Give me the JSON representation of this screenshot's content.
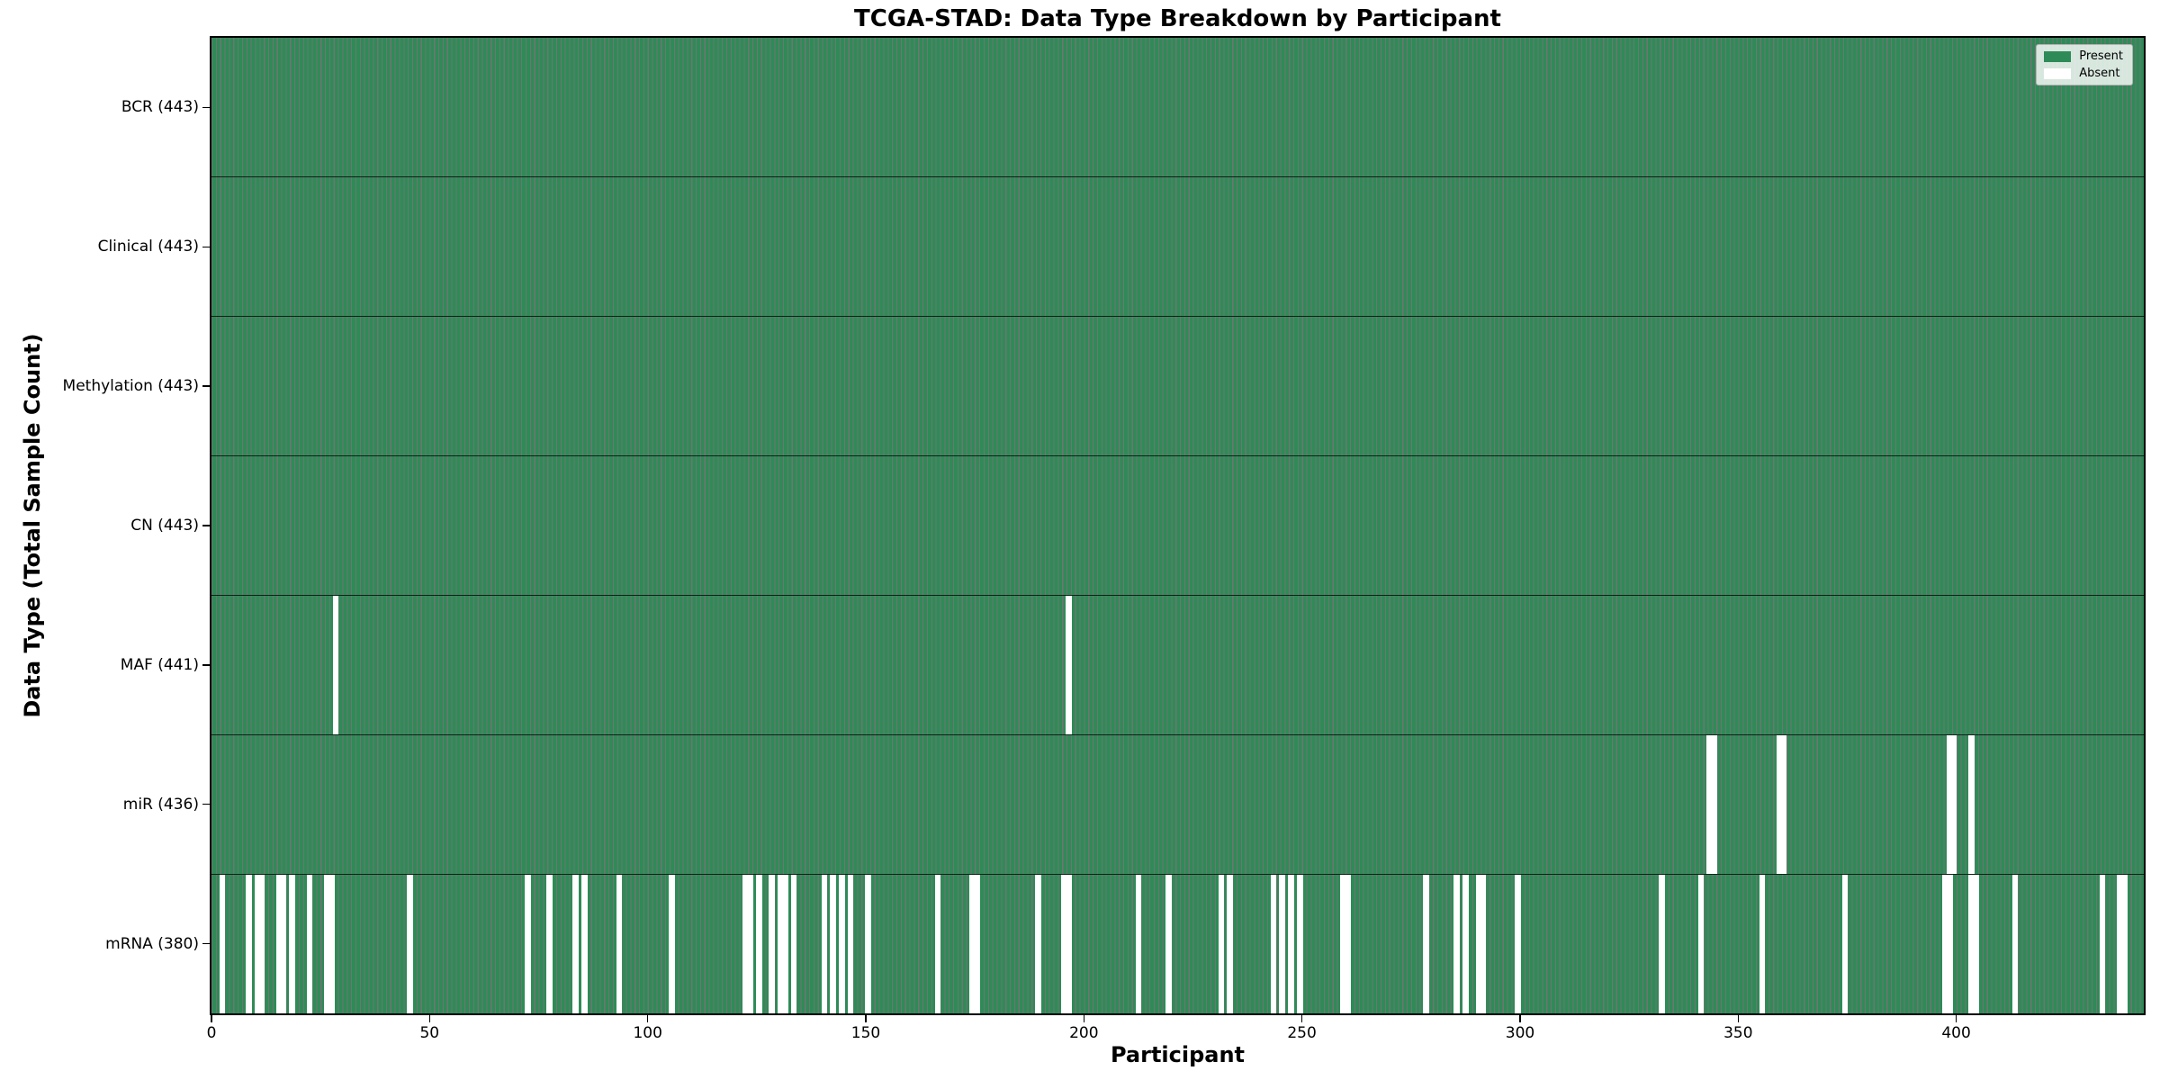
{
  "chart_data": {
    "type": "heatmap",
    "title": "TCGA-STAD: Data Type Breakdown by Participant",
    "xlabel": "Participant",
    "ylabel": "Data Type (Total Sample Count)",
    "n_participants": 443,
    "x_ticks": [
      0,
      50,
      100,
      150,
      200,
      250,
      300,
      350,
      400
    ],
    "legend_position": "upper right",
    "legend": [
      {
        "label": "Present",
        "color": "#2e8b57"
      },
      {
        "label": "Absent",
        "color": "#ffffff"
      }
    ],
    "colors": {
      "present": "#2e8b57",
      "absent": "#ffffff",
      "cell_edge": "rgba(0,0,0,0.55)",
      "row_separator": "rgba(0,0,0,0.75)",
      "spine": "#000000"
    },
    "rows": [
      {
        "key": "bcr",
        "label": "BCR (443)",
        "total": 443,
        "absent": []
      },
      {
        "key": "clinical",
        "label": "Clinical (443)",
        "total": 443,
        "absent": []
      },
      {
        "key": "methylation",
        "label": "Methylation (443)",
        "total": 443,
        "absent": []
      },
      {
        "key": "cn",
        "label": "CN (443)",
        "total": 443,
        "absent": []
      },
      {
        "key": "maf",
        "label": "MAF (441)",
        "total": 441,
        "absent": [
          28,
          196
        ]
      },
      {
        "key": "mir",
        "label": "miR (436)",
        "total": 436,
        "absent": [
          343,
          344,
          359,
          360,
          398,
          399,
          403
        ]
      },
      {
        "key": "mrna",
        "label": "mRNA (380)",
        "total": 380,
        "absent": [
          2,
          8,
          10,
          11,
          15,
          16,
          18,
          22,
          26,
          27,
          45,
          72,
          77,
          83,
          85,
          93,
          105,
          122,
          123,
          125,
          128,
          130,
          131,
          133,
          140,
          142,
          144,
          146,
          150,
          166,
          174,
          175,
          189,
          195,
          196,
          212,
          219,
          231,
          233,
          243,
          245,
          247,
          249,
          259,
          260,
          278,
          285,
          287,
          290,
          291,
          299,
          332,
          341,
          355,
          374,
          397,
          398,
          403,
          404,
          413,
          433,
          437,
          438
        ]
      }
    ]
  }
}
